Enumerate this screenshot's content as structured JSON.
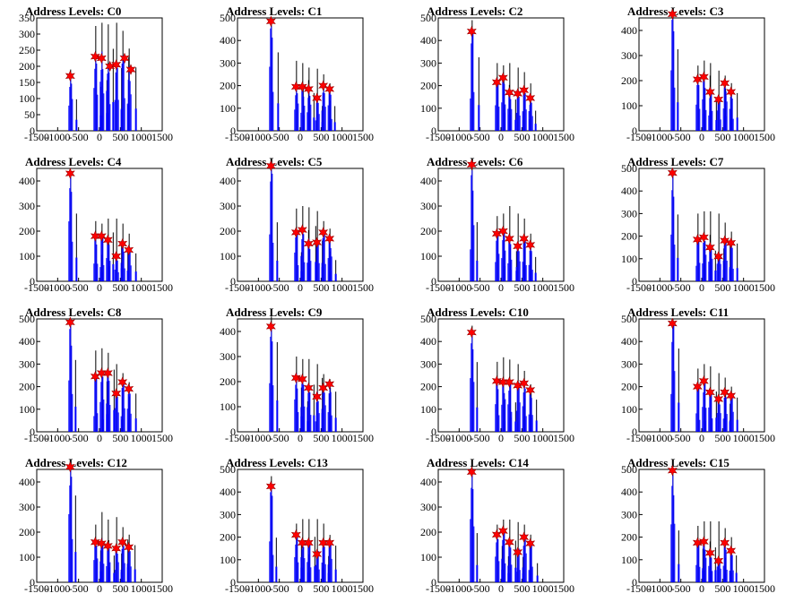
{
  "chart_data": [
    {
      "type": "histogram",
      "title": "Address Levels: C0",
      "xlim": [
        -1500,
        1500
      ],
      "ylim": [
        0,
        350
      ],
      "yticks": [
        0,
        50,
        100,
        150,
        200,
        250,
        300,
        350
      ],
      "xticks": [
        -1500,
        -1000,
        -500,
        0,
        500,
        1000,
        1500
      ],
      "peaks": [
        [
          -700,
          190
        ],
        [
          -100,
          325
        ],
        [
          50,
          335
        ],
        [
          200,
          330
        ],
        [
          400,
          335
        ],
        [
          550,
          310
        ],
        [
          700,
          255
        ]
      ],
      "markers": [
        [
          -700,
          170
        ],
        [
          -100,
          230
        ],
        [
          50,
          225
        ],
        [
          250,
          200
        ],
        [
          400,
          205
        ],
        [
          600,
          225
        ],
        [
          750,
          190
        ]
      ]
    },
    {
      "type": "histogram",
      "title": "Address Levels: C1",
      "xlim": [
        -1500,
        1500
      ],
      "ylim": [
        0,
        500
      ],
      "yticks": [
        0,
        100,
        200,
        300,
        400,
        500
      ],
      "xticks": [
        -1500,
        -1000,
        -500,
        0,
        500,
        1000,
        1500
      ],
      "peaks": [
        [
          -700,
          500
        ],
        [
          -100,
          310
        ],
        [
          50,
          300
        ],
        [
          200,
          280
        ],
        [
          400,
          275
        ],
        [
          550,
          250
        ],
        [
          700,
          210
        ]
      ],
      "markers": [
        [
          -700,
          485
        ],
        [
          -100,
          195
        ],
        [
          50,
          195
        ],
        [
          200,
          185
        ],
        [
          400,
          145
        ],
        [
          550,
          200
        ],
        [
          700,
          185
        ]
      ]
    },
    {
      "type": "histogram",
      "title": "Address Levels: C2",
      "xlim": [
        -1500,
        1500
      ],
      "ylim": [
        0,
        500
      ],
      "yticks": [
        0,
        100,
        200,
        300,
        400,
        500
      ],
      "xticks": [
        -1500,
        -1000,
        -500,
        0,
        500,
        1000,
        1500
      ],
      "peaks": [
        [
          -700,
          490
        ],
        [
          -100,
          300
        ],
        [
          50,
          290
        ],
        [
          200,
          300
        ],
        [
          400,
          280
        ],
        [
          550,
          260
        ],
        [
          700,
          210
        ]
      ],
      "markers": [
        [
          -700,
          440
        ],
        [
          -100,
          215
        ],
        [
          50,
          235
        ],
        [
          200,
          170
        ],
        [
          400,
          165
        ],
        [
          550,
          180
        ],
        [
          700,
          145
        ]
      ]
    },
    {
      "type": "histogram",
      "title": "Address Levels: C3",
      "xlim": [
        -1500,
        1500
      ],
      "ylim": [
        0,
        450
      ],
      "yticks": [
        0,
        100,
        200,
        300,
        400
      ],
      "xticks": [
        -1500,
        -1000,
        -500,
        0,
        500,
        1000,
        1500
      ],
      "peaks": [
        [
          -700,
          470
        ],
        [
          -100,
          260
        ],
        [
          50,
          280
        ],
        [
          200,
          270
        ],
        [
          400,
          240
        ],
        [
          550,
          220
        ],
        [
          700,
          190
        ]
      ],
      "markers": [
        [
          -700,
          465
        ],
        [
          -100,
          205
        ],
        [
          50,
          215
        ],
        [
          200,
          155
        ],
        [
          400,
          125
        ],
        [
          550,
          190
        ],
        [
          700,
          155
        ]
      ]
    },
    {
      "type": "histogram",
      "title": "Address Levels: C4",
      "xlim": [
        -1500,
        1500
      ],
      "ylim": [
        0,
        450
      ],
      "yticks": [
        0,
        100,
        200,
        300,
        400
      ],
      "xticks": [
        -1500,
        -1000,
        -500,
        0,
        500,
        1000,
        1500
      ],
      "peaks": [
        [
          -700,
          430
        ],
        [
          -100,
          240
        ],
        [
          50,
          230
        ],
        [
          200,
          250
        ],
        [
          400,
          250
        ],
        [
          550,
          230
        ],
        [
          700,
          190
        ]
      ],
      "markers": [
        [
          -700,
          430
        ],
        [
          -100,
          180
        ],
        [
          50,
          180
        ],
        [
          200,
          165
        ],
        [
          400,
          100
        ],
        [
          550,
          150
        ],
        [
          700,
          125
        ]
      ]
    },
    {
      "type": "histogram",
      "title": "Address Levels: C5",
      "xlim": [
        -1500,
        1500
      ],
      "ylim": [
        0,
        450
      ],
      "yticks": [
        0,
        100,
        200,
        300,
        400
      ],
      "xticks": [
        -1500,
        -1000,
        -500,
        0,
        500,
        1000,
        1500
      ],
      "peaks": [
        [
          -700,
          480
        ],
        [
          -100,
          290
        ],
        [
          50,
          300
        ],
        [
          200,
          295
        ],
        [
          400,
          280
        ],
        [
          550,
          240
        ],
        [
          700,
          210
        ]
      ],
      "markers": [
        [
          -700,
          460
        ],
        [
          -100,
          195
        ],
        [
          50,
          205
        ],
        [
          200,
          150
        ],
        [
          400,
          155
        ],
        [
          550,
          195
        ],
        [
          700,
          170
        ]
      ]
    },
    {
      "type": "histogram",
      "title": "Address Levels: C6",
      "xlim": [
        -1500,
        1500
      ],
      "ylim": [
        0,
        450
      ],
      "yticks": [
        0,
        100,
        200,
        300,
        400
      ],
      "xticks": [
        -1500,
        -1000,
        -500,
        0,
        500,
        1000,
        1500
      ],
      "peaks": [
        [
          -700,
          470
        ],
        [
          -100,
          260
        ],
        [
          50,
          270
        ],
        [
          200,
          300
        ],
        [
          400,
          270
        ],
        [
          550,
          250
        ],
        [
          700,
          190
        ]
      ],
      "markers": [
        [
          -700,
          465
        ],
        [
          -100,
          190
        ],
        [
          50,
          200
        ],
        [
          200,
          170
        ],
        [
          400,
          140
        ],
        [
          550,
          170
        ],
        [
          700,
          145
        ]
      ]
    },
    {
      "type": "histogram",
      "title": "Address Levels: C7",
      "xlim": [
        -1500,
        1500
      ],
      "ylim": [
        0,
        500
      ],
      "yticks": [
        0,
        100,
        200,
        300,
        400,
        500
      ],
      "xticks": [
        -1500,
        -1000,
        -500,
        0,
        500,
        1000,
        1500
      ],
      "peaks": [
        [
          -700,
          490
        ],
        [
          -100,
          300
        ],
        [
          50,
          310
        ],
        [
          200,
          310
        ],
        [
          400,
          300
        ],
        [
          550,
          260
        ],
        [
          700,
          220
        ]
      ],
      "markers": [
        [
          -700,
          480
        ],
        [
          -100,
          185
        ],
        [
          50,
          195
        ],
        [
          200,
          150
        ],
        [
          400,
          110
        ],
        [
          550,
          180
        ],
        [
          700,
          170
        ]
      ]
    },
    {
      "type": "histogram",
      "title": "Address Levels: C8",
      "xlim": [
        -1500,
        1500
      ],
      "ylim": [
        0,
        500
      ],
      "yticks": [
        0,
        100,
        200,
        300,
        400,
        500
      ],
      "xticks": [
        -1500,
        -1000,
        -500,
        0,
        500,
        1000,
        1500
      ],
      "peaks": [
        [
          -700,
          500
        ],
        [
          -100,
          360
        ],
        [
          50,
          370
        ],
        [
          200,
          350
        ],
        [
          400,
          300
        ],
        [
          550,
          260
        ],
        [
          700,
          220
        ]
      ],
      "markers": [
        [
          -700,
          485
        ],
        [
          -100,
          245
        ],
        [
          50,
          260
        ],
        [
          200,
          260
        ],
        [
          400,
          170
        ],
        [
          550,
          220
        ],
        [
          700,
          190
        ]
      ]
    },
    {
      "type": "histogram",
      "title": "Address Levels: C9",
      "xlim": [
        -1500,
        1500
      ],
      "ylim": [
        0,
        450
      ],
      "yticks": [
        0,
        100,
        200,
        300,
        400
      ],
      "xticks": [
        -1500,
        -1000,
        -500,
        0,
        500,
        1000,
        1500
      ],
      "peaks": [
        [
          -700,
          460
        ],
        [
          -100,
          300
        ],
        [
          50,
          290
        ],
        [
          200,
          290
        ],
        [
          400,
          270
        ],
        [
          550,
          230
        ],
        [
          700,
          210
        ]
      ],
      "markers": [
        [
          -700,
          420
        ],
        [
          -100,
          215
        ],
        [
          50,
          210
        ],
        [
          200,
          175
        ],
        [
          400,
          140
        ],
        [
          550,
          175
        ],
        [
          700,
          190
        ]
      ]
    },
    {
      "type": "histogram",
      "title": "Address Levels: C10",
      "xlim": [
        -1500,
        1500
      ],
      "ylim": [
        0,
        500
      ],
      "yticks": [
        0,
        100,
        200,
        300,
        400,
        500
      ],
      "xticks": [
        -1500,
        -1000,
        -500,
        0,
        500,
        1000,
        1500
      ],
      "peaks": [
        [
          -700,
          470
        ],
        [
          -100,
          310
        ],
        [
          50,
          330
        ],
        [
          200,
          320
        ],
        [
          400,
          300
        ],
        [
          550,
          270
        ],
        [
          700,
          210
        ]
      ],
      "markers": [
        [
          -700,
          440
        ],
        [
          -100,
          225
        ],
        [
          50,
          220
        ],
        [
          200,
          220
        ],
        [
          400,
          205
        ],
        [
          550,
          215
        ],
        [
          700,
          185
        ]
      ]
    },
    {
      "type": "histogram",
      "title": "Address Levels: C11",
      "xlim": [
        -1500,
        1500
      ],
      "ylim": [
        0,
        500
      ],
      "yticks": [
        0,
        100,
        200,
        300,
        400,
        500
      ],
      "xticks": [
        -1500,
        -1000,
        -500,
        0,
        500,
        1000,
        1500
      ],
      "peaks": [
        [
          -700,
          500
        ],
        [
          -100,
          280
        ],
        [
          50,
          300
        ],
        [
          200,
          290
        ],
        [
          400,
          260
        ],
        [
          550,
          240
        ],
        [
          700,
          200
        ]
      ],
      "markers": [
        [
          -700,
          480
        ],
        [
          -100,
          200
        ],
        [
          50,
          225
        ],
        [
          200,
          175
        ],
        [
          400,
          145
        ],
        [
          550,
          175
        ],
        [
          700,
          160
        ]
      ]
    },
    {
      "type": "histogram",
      "title": "Address Levels: C12",
      "xlim": [
        -1500,
        1500
      ],
      "ylim": [
        0,
        450
      ],
      "yticks": [
        0,
        100,
        200,
        300,
        400
      ],
      "xticks": [
        -1500,
        -1000,
        -500,
        0,
        500,
        1000,
        1500
      ],
      "peaks": [
        [
          -700,
          460
        ],
        [
          -100,
          230
        ],
        [
          50,
          280
        ],
        [
          200,
          250
        ],
        [
          400,
          260
        ],
        [
          550,
          220
        ],
        [
          700,
          190
        ]
      ],
      "markers": [
        [
          -700,
          460
        ],
        [
          -100,
          160
        ],
        [
          50,
          155
        ],
        [
          200,
          145
        ],
        [
          400,
          135
        ],
        [
          550,
          160
        ],
        [
          700,
          140
        ]
      ]
    },
    {
      "type": "histogram",
      "title": "Address Levels: C13",
      "xlim": [
        -1500,
        1500
      ],
      "ylim": [
        0,
        500
      ],
      "yticks": [
        0,
        100,
        200,
        300,
        400,
        500
      ],
      "xticks": [
        -1500,
        -1000,
        -500,
        0,
        500,
        1000,
        1500
      ],
      "peaks": [
        [
          -700,
          470
        ],
        [
          -100,
          260
        ],
        [
          50,
          280
        ],
        [
          200,
          280
        ],
        [
          400,
          280
        ],
        [
          550,
          260
        ],
        [
          700,
          210
        ]
      ],
      "markers": [
        [
          -700,
          425
        ],
        [
          -100,
          210
        ],
        [
          50,
          175
        ],
        [
          200,
          175
        ],
        [
          400,
          125
        ],
        [
          550,
          175
        ],
        [
          700,
          175
        ]
      ]
    },
    {
      "type": "histogram",
      "title": "Address Levels: C14",
      "xlim": [
        -1500,
        1500
      ],
      "ylim": [
        0,
        450
      ],
      "yticks": [
        0,
        100,
        200,
        300,
        400
      ],
      "xticks": [
        -1500,
        -1000,
        -500,
        0,
        500,
        1000,
        1500
      ],
      "peaks": [
        [
          -700,
          460
        ],
        [
          -100,
          230
        ],
        [
          50,
          250
        ],
        [
          200,
          250
        ],
        [
          400,
          240
        ],
        [
          550,
          230
        ],
        [
          700,
          190
        ]
      ],
      "markers": [
        [
          -700,
          440
        ],
        [
          -100,
          190
        ],
        [
          50,
          205
        ],
        [
          200,
          160
        ],
        [
          400,
          120
        ],
        [
          550,
          180
        ],
        [
          700,
          155
        ]
      ]
    },
    {
      "type": "histogram",
      "title": "Address Levels: C15",
      "xlim": [
        -1500,
        1500
      ],
      "ylim": [
        0,
        500
      ],
      "yticks": [
        0,
        100,
        200,
        300,
        400,
        500
      ],
      "xticks": [
        -1500,
        -1000,
        -500,
        0,
        500,
        1000,
        1500
      ],
      "peaks": [
        [
          -700,
          500
        ],
        [
          -100,
          250
        ],
        [
          50,
          270
        ],
        [
          200,
          270
        ],
        [
          400,
          270
        ],
        [
          550,
          240
        ],
        [
          700,
          200
        ]
      ],
      "markers": [
        [
          -700,
          495
        ],
        [
          -100,
          175
        ],
        [
          50,
          180
        ],
        [
          200,
          130
        ],
        [
          400,
          95
        ],
        [
          550,
          175
        ],
        [
          700,
          140
        ]
      ]
    }
  ],
  "colors": {
    "histogram": "#0000ff",
    "spike": "#000000",
    "marker": "#ff0000",
    "marker_outline": "#990000",
    "axis": "#000000"
  }
}
